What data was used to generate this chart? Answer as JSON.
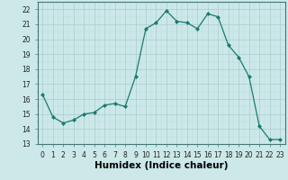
{
  "x": [
    0,
    1,
    2,
    3,
    4,
    5,
    6,
    7,
    8,
    9,
    10,
    11,
    12,
    13,
    14,
    15,
    16,
    17,
    18,
    19,
    20,
    21,
    22,
    23
  ],
  "y": [
    16.3,
    14.8,
    14.4,
    14.6,
    15.0,
    15.1,
    15.6,
    15.7,
    15.5,
    17.5,
    20.7,
    21.1,
    21.9,
    21.2,
    21.1,
    20.7,
    21.7,
    21.5,
    19.6,
    18.8,
    17.5,
    14.2,
    13.3,
    13.3
  ],
  "line_color": "#1a7a6e",
  "marker": "D",
  "marker_size": 2,
  "bg_color": "#cce8e8",
  "grid_major_color": "#aacccc",
  "grid_minor_color": "#bbdddd",
  "xlabel": "Humidex (Indice chaleur)",
  "xlim": [
    -0.5,
    23.5
  ],
  "ylim": [
    13,
    22.5
  ],
  "yticks": [
    13,
    14,
    15,
    16,
    17,
    18,
    19,
    20,
    21,
    22
  ],
  "xticks": [
    0,
    1,
    2,
    3,
    4,
    5,
    6,
    7,
    8,
    9,
    10,
    11,
    12,
    13,
    14,
    15,
    16,
    17,
    18,
    19,
    20,
    21,
    22,
    23
  ],
  "tick_fontsize": 5.5,
  "label_fontsize": 7.5
}
